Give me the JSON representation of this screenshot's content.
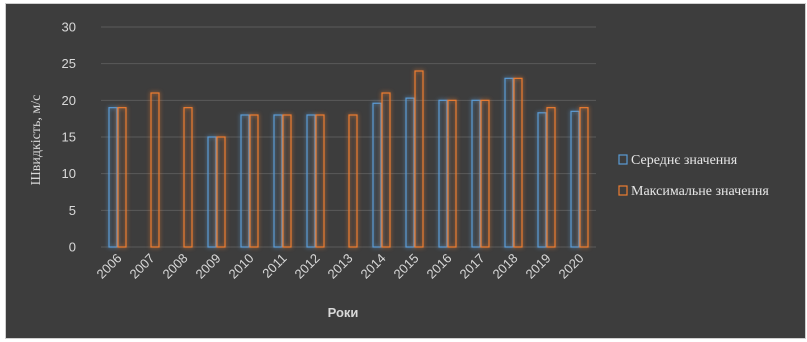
{
  "chart_data": {
    "type": "bar",
    "title": "",
    "xlabel": "Роки",
    "ylabel": "Швидкість, м/с",
    "ylim": [
      0,
      30
    ],
    "yticks": [
      0,
      5,
      10,
      15,
      20,
      25,
      30
    ],
    "grid": true,
    "legend_position": "right",
    "categories": [
      "2006",
      "2007",
      "2008",
      "2009",
      "2010",
      "2011",
      "2012",
      "2013",
      "2014",
      "2015",
      "2016",
      "2017",
      "2018",
      "2019",
      "2020"
    ],
    "series": [
      {
        "name": "Середнє значення",
        "color": "#5b9bd5",
        "values": [
          19.0,
          null,
          null,
          15.0,
          18.0,
          18.0,
          18.0,
          null,
          19.6,
          20.3,
          20.0,
          20.0,
          23.0,
          18.3,
          18.5
        ]
      },
      {
        "name": "Максимальне значення",
        "color": "#ed7d31",
        "values": [
          19,
          21,
          19,
          15,
          18,
          18,
          18,
          18,
          21,
          24,
          20,
          20,
          23,
          19,
          19
        ]
      }
    ]
  }
}
